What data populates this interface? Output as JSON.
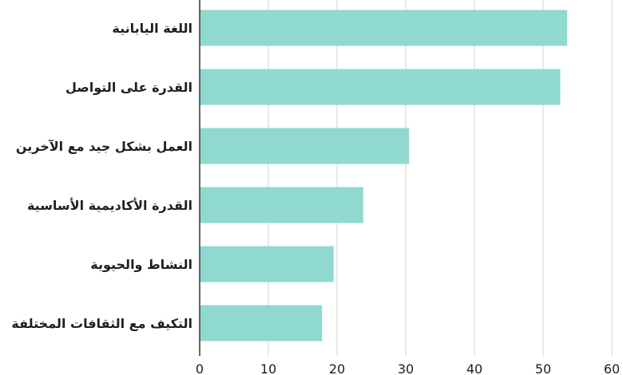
{
  "chart_data": {
    "type": "bar",
    "orientation": "horizontal",
    "categories": [
      "اللغة اليابانية",
      "القدرة على التواصل",
      "العمل بشكل جيد مع الآخرين",
      "القدرة الأكاديمية الأساسية",
      "النشاط والحيوية",
      "التكيف مع الثقافات المختلفة"
    ],
    "values": [
      53.5,
      52.5,
      30.5,
      23.8,
      19.5,
      17.8
    ],
    "xlim": [
      0,
      60
    ],
    "xticks": [
      "0",
      "10",
      "20",
      "30",
      "40",
      "50",
      "60"
    ],
    "grid": true,
    "colors": {
      "bar": "#8fd9d0",
      "grid": "#d2d2d2",
      "axis": "#333333",
      "text": "#1f1f1f"
    }
  }
}
